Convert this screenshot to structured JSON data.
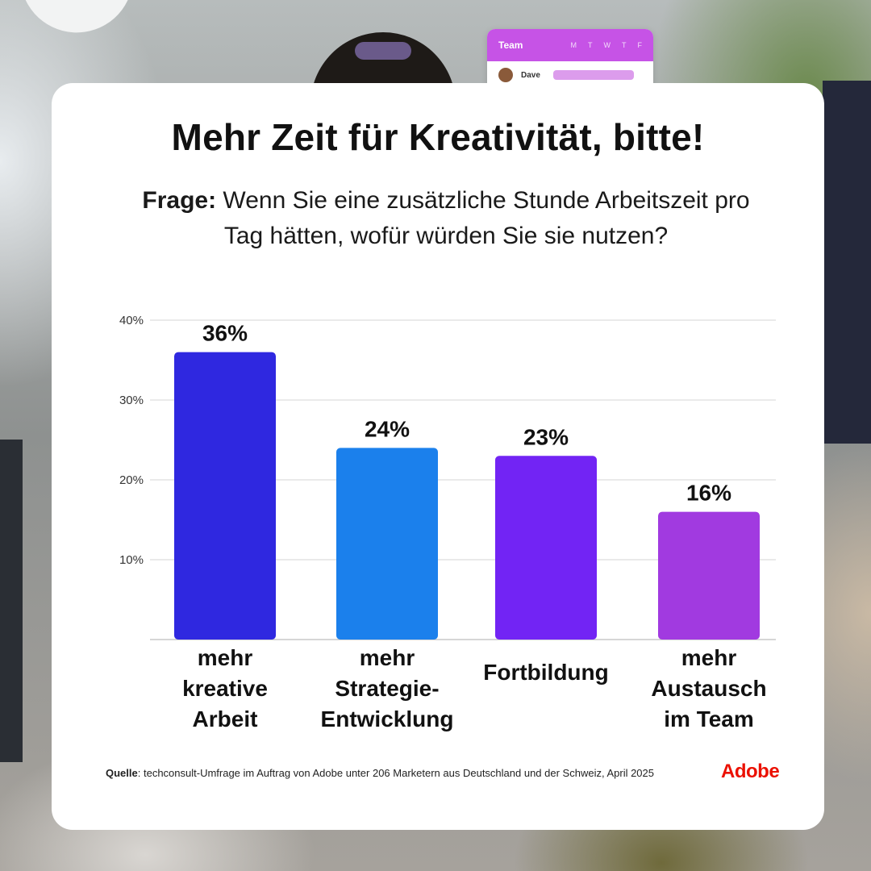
{
  "background": {
    "team_widget": {
      "title": "Team",
      "days": [
        "M",
        "T",
        "W",
        "T",
        "F"
      ],
      "member": "Dave"
    }
  },
  "card": {
    "title": "Mehr Zeit für Kreativität, bitte!",
    "question_label": "Frage:",
    "question_text": "Wenn Sie eine zusätzliche Stunde Arbeitszeit pro Tag hätten, wofür würden Sie sie nutzen?",
    "source_label": "Quelle",
    "source_text": ": techconsult-Umfrage im Auftrag von Adobe unter 206 Marketern aus Deutschland und der Schweiz, April 2025",
    "brand": "Adobe"
  },
  "colors": {
    "brand_red": "#eb1000",
    "bar_1": "#2f28e0",
    "bar_2": "#1b80ec",
    "bar_3": "#7224f4",
    "bar_4": "#a13ae0"
  },
  "chart_data": {
    "type": "bar",
    "categories": [
      [
        "mehr",
        "kreative",
        "Arbeit"
      ],
      [
        "mehr",
        "Strategie-",
        "Entwicklung"
      ],
      [
        "Fortbildung"
      ],
      [
        "mehr",
        "Austausch",
        "im Team"
      ]
    ],
    "values": [
      36,
      24,
      23,
      16
    ],
    "value_labels": [
      "36%",
      "24%",
      "23%",
      "16%"
    ],
    "bar_colors": [
      "#2f28e0",
      "#1b80ec",
      "#7224f4",
      "#a13ae0"
    ],
    "yticks": [
      10,
      20,
      30,
      40
    ],
    "ytick_labels": [
      "10%",
      "20%",
      "30%",
      "40%"
    ],
    "ylim": [
      0,
      40
    ],
    "grid": true
  }
}
